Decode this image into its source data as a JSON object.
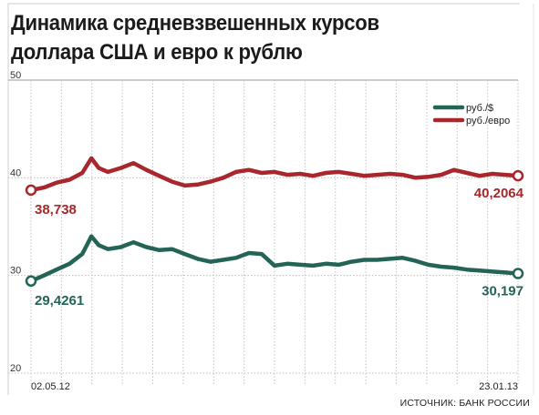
{
  "title_lines": [
    "Динамика средневзвешенных курсов",
    "доллара США и евро к рублю"
  ],
  "source": "ИСТОЧНИК: БАНК РОССИИ",
  "chart_data": {
    "type": "line",
    "title": "Динамика средневзвешенных курсов доллара США и евро к рублю",
    "xlabel": "",
    "ylabel": "",
    "ylim": [
      20,
      50
    ],
    "yticks": [
      20,
      30,
      40,
      50
    ],
    "xtick_labels": [
      "02.05.12",
      "23.01.13"
    ],
    "x_range": [
      "02.05.12",
      "23.01.13"
    ],
    "grid": true,
    "legend_position": "top-right",
    "series": [
      {
        "name": "руб./$",
        "color": "#236457",
        "start_label": "29,4261",
        "end_label": "30,197",
        "x": [
          "02.05.12",
          "09.05.12",
          "16.05.12",
          "23.05.12",
          "30.05.12",
          "04.06.12",
          "08.06.12",
          "13.06.12",
          "20.06.12",
          "27.06.12",
          "04.07.12",
          "11.07.12",
          "18.07.12",
          "25.07.12",
          "01.08.12",
          "08.08.12",
          "15.08.12",
          "22.08.12",
          "29.08.12",
          "05.09.12",
          "12.09.12",
          "19.09.12",
          "26.09.12",
          "03.10.12",
          "10.10.12",
          "17.10.12",
          "24.10.12",
          "31.10.12",
          "07.11.12",
          "14.11.12",
          "21.11.12",
          "28.11.12",
          "05.12.12",
          "12.12.12",
          "19.12.12",
          "26.12.12",
          "02.01.13",
          "09.01.13",
          "16.01.13",
          "23.01.13"
        ],
        "values": [
          29.43,
          30.0,
          30.6,
          31.2,
          32.2,
          34.0,
          33.1,
          32.7,
          32.9,
          33.4,
          32.9,
          32.6,
          32.7,
          32.2,
          31.7,
          31.4,
          31.6,
          31.8,
          32.3,
          32.2,
          31.0,
          31.2,
          31.1,
          31.0,
          31.2,
          31.1,
          31.4,
          31.6,
          31.6,
          31.7,
          31.8,
          31.5,
          31.1,
          30.9,
          30.8,
          30.6,
          30.5,
          30.4,
          30.3,
          30.197
        ]
      },
      {
        "name": "руб./евро",
        "color": "#a8262c",
        "start_label": "38,738",
        "end_label": "40,2064",
        "x": [
          "02.05.12",
          "09.05.12",
          "16.05.12",
          "23.05.12",
          "30.05.12",
          "04.06.12",
          "08.06.12",
          "13.06.12",
          "20.06.12",
          "27.06.12",
          "04.07.12",
          "11.07.12",
          "18.07.12",
          "25.07.12",
          "01.08.12",
          "08.08.12",
          "15.08.12",
          "22.08.12",
          "29.08.12",
          "05.09.12",
          "12.09.12",
          "19.09.12",
          "26.09.12",
          "03.10.12",
          "10.10.12",
          "17.10.12",
          "24.10.12",
          "31.10.12",
          "07.11.12",
          "14.11.12",
          "21.11.12",
          "28.11.12",
          "05.12.12",
          "12.12.12",
          "19.12.12",
          "26.12.12",
          "02.01.13",
          "09.01.13",
          "16.01.13",
          "23.01.13"
        ],
        "values": [
          38.74,
          39.0,
          39.5,
          39.8,
          40.5,
          42.0,
          41.0,
          40.6,
          41.0,
          41.5,
          40.8,
          40.2,
          39.6,
          39.2,
          39.3,
          39.6,
          40.0,
          40.6,
          40.8,
          40.5,
          40.6,
          40.3,
          40.4,
          40.2,
          40.5,
          40.6,
          40.4,
          40.2,
          40.3,
          40.4,
          40.3,
          40.0,
          40.1,
          40.3,
          40.8,
          40.5,
          40.2,
          40.4,
          40.3,
          40.2064
        ]
      }
    ]
  }
}
